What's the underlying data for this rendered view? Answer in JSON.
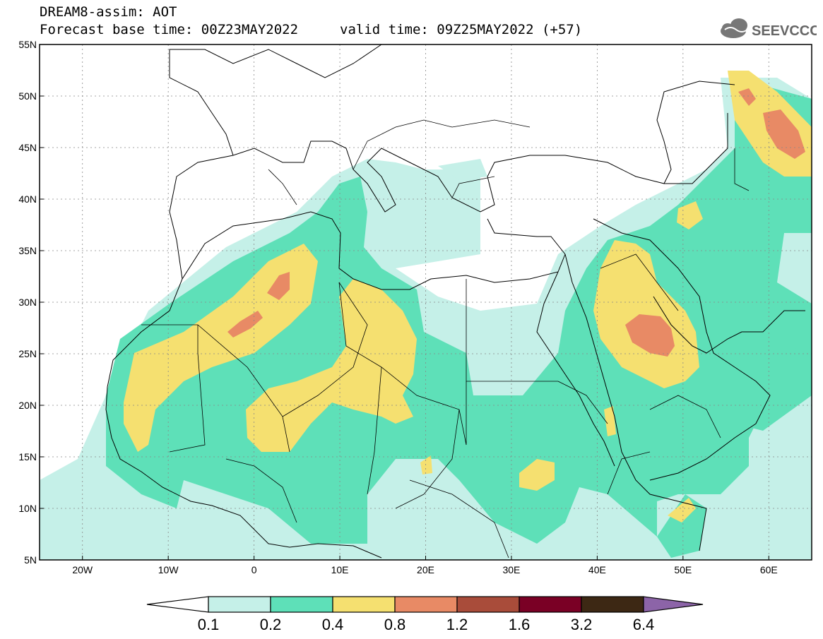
{
  "header": {
    "line1": "DREAM8-assim: AOT",
    "line2": "Forecast base time: 00Z23MAY2022",
    "line3": "valid time: 09Z25MAY2022 (+57)"
  },
  "logo": {
    "text": "SEEVCCC",
    "icon": "cloud-icon"
  },
  "map_data": {
    "projection": "lat-lon",
    "lon_range": [
      -25,
      65
    ],
    "lat_range": [
      5,
      55
    ],
    "lon_ticks": [
      {
        "v": -20,
        "label": "20W"
      },
      {
        "v": -10,
        "label": "10W"
      },
      {
        "v": 0,
        "label": "0"
      },
      {
        "v": 10,
        "label": "10E"
      },
      {
        "v": 20,
        "label": "20E"
      },
      {
        "v": 30,
        "label": "30E"
      },
      {
        "v": 40,
        "label": "40E"
      },
      {
        "v": 50,
        "label": "50E"
      },
      {
        "v": 60,
        "label": "60E"
      }
    ],
    "lat_ticks": [
      {
        "v": 5,
        "label": "5N"
      },
      {
        "v": 10,
        "label": "10N"
      },
      {
        "v": 15,
        "label": "15N"
      },
      {
        "v": 20,
        "label": "20N"
      },
      {
        "v": 25,
        "label": "25N"
      },
      {
        "v": 30,
        "label": "30N"
      },
      {
        "v": 35,
        "label": "35N"
      },
      {
        "v": 40,
        "label": "40N"
      },
      {
        "v": 45,
        "label": "45N"
      },
      {
        "v": 50,
        "label": "50N"
      },
      {
        "v": 55,
        "label": "55N"
      }
    ],
    "grid": "dotted"
  },
  "colorbar": {
    "labels": [
      "0.1",
      "0.2",
      "0.4",
      "0.8",
      "1.2",
      "1.6",
      "3.2",
      "6.4"
    ],
    "colors": [
      "#ffffff",
      "#c5f0e8",
      "#5ee0b8",
      "#f5e070",
      "#e88a65",
      "#a94c3a",
      "#7a0025",
      "#3d2814",
      "#8c64a8"
    ]
  }
}
